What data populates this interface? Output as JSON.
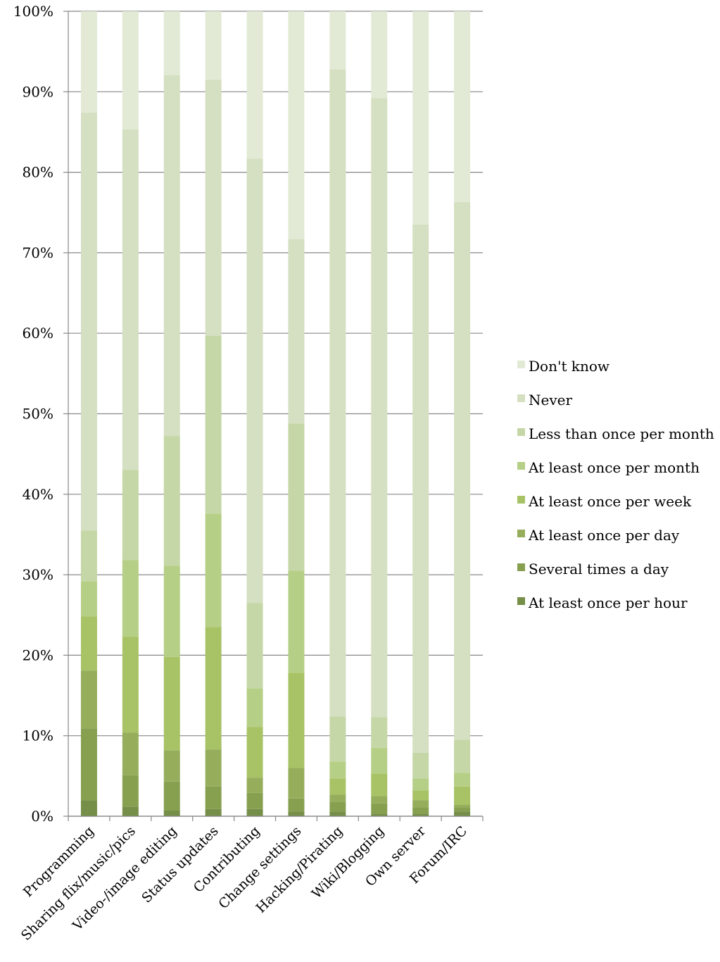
{
  "chart_data": {
    "type": "bar",
    "stacked": true,
    "percent": true,
    "categories": [
      "Programming",
      "Sharing flix/music/pics",
      "Video-/image editing",
      "Status updates",
      "Contributing",
      "Change settings",
      "Hacking/Pirating",
      "Wiki/Blogging",
      "Own server",
      "Forum/IRC"
    ],
    "series": [
      {
        "name": "At least once per hour",
        "color": "#758f48",
        "values": [
          2.0,
          1.2,
          0.7,
          0.9,
          0.9,
          0.6,
          0.6,
          0.3,
          0.3,
          0.6
        ]
      },
      {
        "name": "Several times a day",
        "color": "#87a050",
        "values": [
          8.9,
          3.9,
          3.6,
          2.8,
          2.0,
          1.6,
          1.2,
          1.3,
          0.8,
          0.5
        ]
      },
      {
        "name": "At least once per day",
        "color": "#96ae5c",
        "values": [
          7.2,
          5.3,
          3.9,
          4.6,
          1.9,
          3.8,
          0.9,
          0.9,
          0.9,
          0.3
        ]
      },
      {
        "name": "At least once per week",
        "color": "#a8c266",
        "values": [
          6.7,
          11.9,
          11.6,
          15.2,
          6.3,
          11.8,
          2.0,
          2.8,
          1.2,
          2.3
        ]
      },
      {
        "name": "At least once per month",
        "color": "#b6cf86",
        "values": [
          4.4,
          9.5,
          11.3,
          14.1,
          4.8,
          12.7,
          2.1,
          3.2,
          1.5,
          1.7
        ]
      },
      {
        "name": "Less than once per month",
        "color": "#c5d7a6",
        "values": [
          6.3,
          11.2,
          16.1,
          22.1,
          10.6,
          18.3,
          5.6,
          3.8,
          3.2,
          4.1
        ]
      },
      {
        "name": "Never",
        "color": "#d5dfc1",
        "values": [
          51.9,
          42.3,
          44.9,
          31.8,
          55.2,
          22.9,
          80.4,
          76.9,
          65.6,
          66.8
        ]
      },
      {
        "name": "Don't know",
        "color": "#e2ead6",
        "values": [
          12.6,
          14.7,
          7.9,
          8.5,
          18.3,
          28.3,
          7.2,
          10.8,
          26.5,
          23.7
        ]
      }
    ],
    "y_ticks": [
      "0%",
      "10%",
      "20%",
      "30%",
      "40%",
      "50%",
      "60%",
      "70%",
      "80%",
      "90%",
      "100%"
    ],
    "ylim": [
      0,
      100
    ],
    "grid": true,
    "legend": "right",
    "axis_color": "#888888"
  }
}
